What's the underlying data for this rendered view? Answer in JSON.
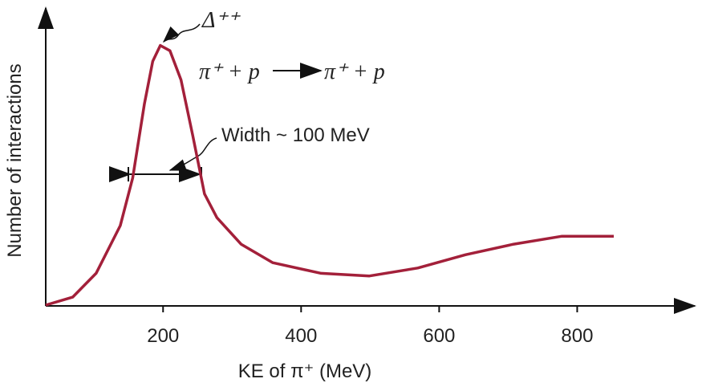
{
  "chart_data": {
    "type": "line",
    "x_label": "KE of π⁺ (MeV)",
    "y_label": "Number of interactions",
    "annotations": {
      "resonance": "Δ⁺⁺",
      "reaction_left": "π⁺ + p",
      "reaction_right": "π⁺ + p",
      "width": "Width ~ 100 MeV"
    },
    "x": [
      30,
      69,
      103,
      138,
      156,
      173,
      185,
      196,
      210,
      226,
      243,
      260,
      278,
      313,
      359,
      429,
      499,
      569,
      638,
      708,
      778,
      853
    ],
    "series": [
      {
        "color": "#a3203a",
        "values": [
          0,
          3,
          12,
          30,
          48,
          76,
          92,
          98,
          96,
          85,
          64,
          42,
          33,
          23,
          16,
          12,
          11,
          14,
          19,
          23,
          26,
          26
        ]
      }
    ],
    "xlim": [
      30,
      975
    ],
    "xticks": [
      200,
      400,
      600,
      800
    ],
    "ylim": [
      0,
      100
    ],
    "grid": false
  }
}
